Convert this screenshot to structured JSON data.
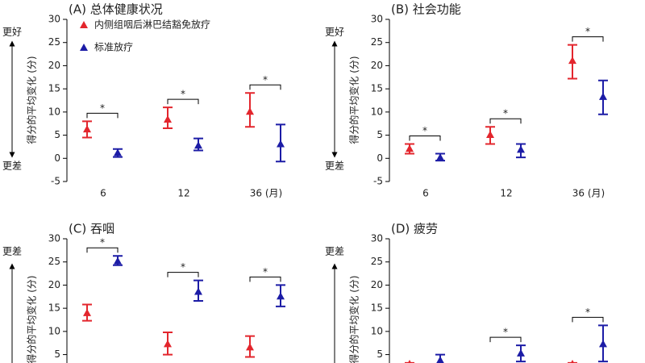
{
  "chart_data": [
    {
      "type": "errorbar",
      "title": "(A) 总体健康状况",
      "ylabel": "得分的平均变化 (分)",
      "annotations": {
        "top": "更好",
        "bottom": "更差"
      },
      "categories": [
        "6",
        "12",
        "36 (月)"
      ],
      "legend": "top-left",
      "series": [
        {
          "name": "内侧组咽后淋巴结豁免放疗",
          "color": "#e3262d",
          "values": [
            6.3,
            8.4,
            10.1
          ],
          "lower": [
            4.5,
            6.5,
            6.8
          ],
          "upper": [
            8,
            11,
            14.1
          ]
        },
        {
          "name": "标准放疗",
          "color": "#1c1ca6",
          "values": [
            1.2,
            2.8,
            3.1
          ],
          "lower": [
            0.3,
            1.7,
            -0.7
          ],
          "upper": [
            2,
            4.3,
            7.3
          ]
        }
      ],
      "significance": [
        "*",
        "*",
        "*"
      ],
      "ylim": [
        -5,
        30
      ],
      "yticks": [
        -5,
        0,
        5,
        10,
        15,
        20,
        25,
        30
      ]
    },
    {
      "type": "errorbar",
      "title": "(B) 社会功能",
      "ylabel": "得分的平均变化 (分)",
      "annotations": {
        "top": "更好",
        "bottom": "更差"
      },
      "categories": [
        "6",
        "12",
        "36 (月)"
      ],
      "series": [
        {
          "color": "#e3262d",
          "values": [
            2.1,
            5.1,
            21.1
          ],
          "lower": [
            1,
            3.1,
            17.2
          ],
          "upper": [
            3.1,
            6.8,
            24.5
          ]
        },
        {
          "color": "#1c1ca6",
          "values": [
            0.2,
            1.9,
            13.3
          ],
          "lower": [
            -0.5,
            0.2,
            9.5
          ],
          "upper": [
            1,
            3.1,
            16.8
          ]
        }
      ],
      "significance": [
        "*",
        "*",
        "*"
      ],
      "ylim": [
        -5,
        30
      ],
      "yticks": [
        -5,
        0,
        5,
        10,
        15,
        20,
        25,
        30
      ]
    },
    {
      "type": "errorbar",
      "title": "(C) 吞咽",
      "ylabel": "得分的平均变化 (分)",
      "annotations": {
        "top": "更差"
      },
      "series": [
        {
          "color": "#e3262d",
          "values": [
            14,
            7.3,
            6.6
          ],
          "lower": [
            12.3,
            5,
            4.5
          ],
          "upper": [
            15.8,
            9.8,
            9
          ]
        },
        {
          "color": "#1c1ca6",
          "values": [
            25.2,
            18.6,
            17.6
          ],
          "lower": [
            24.3,
            16.6,
            15.4
          ],
          "upper": [
            26.3,
            21,
            20
          ]
        }
      ],
      "significance": [
        "*",
        "*",
        "*"
      ],
      "ylim": [
        -5,
        30
      ],
      "yticks": [
        5,
        10,
        15,
        20,
        25,
        30
      ]
    },
    {
      "type": "errorbar",
      "title": "(D) 疲劳",
      "ylabel": "得分的平均变化 (分)",
      "annotations": {
        "top": "更差"
      },
      "series": [
        {
          "color": "#e3262d",
          "values": [
            3,
            null,
            3
          ],
          "lower": [
            null,
            null,
            null
          ],
          "upper": [
            3.2,
            null,
            3.2
          ]
        },
        {
          "color": "#1c1ca6",
          "values": [
            3.8,
            5.3,
            7.3
          ],
          "lower": [
            null,
            3.5,
            3.5
          ],
          "upper": [
            5,
            7,
            11.3
          ]
        }
      ],
      "significance": [
        null,
        "*",
        "*"
      ],
      "ylim": [
        -5,
        30
      ],
      "yticks": [
        5,
        10,
        15,
        20,
        25,
        30
      ]
    }
  ]
}
